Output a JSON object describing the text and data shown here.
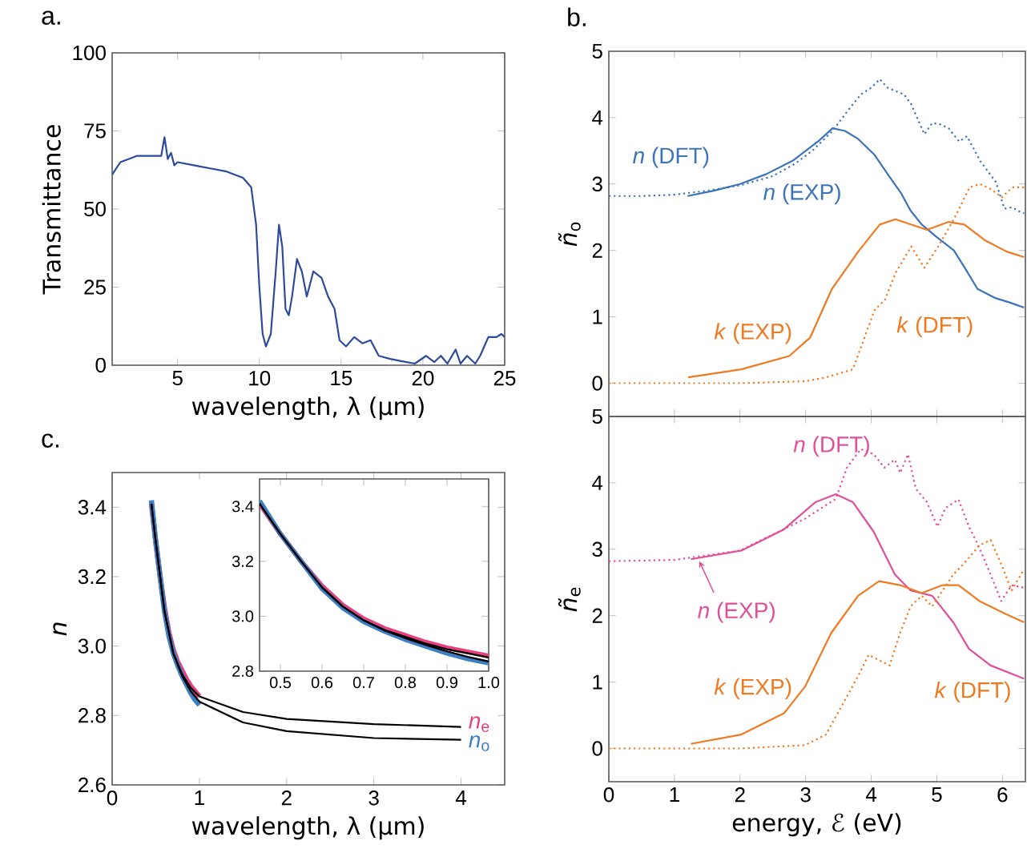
{
  "chart_data": [
    {
      "type": "line",
      "xlabel": "wavelength, λ (μm)",
      "ylabel": "Transmittance",
      "xlim": [
        1,
        25
      ],
      "ylim": [
        0,
        100
      ],
      "xticks": [
        5,
        10,
        15,
        20,
        25
      ],
      "yticks": [
        0,
        25,
        50,
        75,
        100
      ],
      "annotations": [
        "a."
      ],
      "series": [
        {
          "color": "#2e4a9a",
          "line_style": "solid",
          "x": [
            1,
            1.5,
            2,
            2.5,
            3,
            4,
            4.2,
            4.4,
            4.6,
            4.8,
            5,
            6,
            7,
            8,
            9,
            9.5,
            9.8,
            10,
            10.2,
            10.4,
            10.7,
            11,
            11.2,
            11.4,
            11.6,
            11.8,
            12,
            12.3,
            12.6,
            12.9,
            13.3,
            13.8,
            14.2,
            14.6,
            14.9,
            15.3,
            15.8,
            16.3,
            16.8,
            17.3,
            18,
            19,
            19.5,
            20.2,
            20.7,
            21.1,
            21.5,
            22,
            22.3,
            22.7,
            23.2,
            23.5,
            24,
            24.5,
            24.8,
            25
          ],
          "values": [
            61,
            65,
            66,
            67,
            67,
            67,
            73,
            66,
            68,
            64,
            65,
            64,
            63,
            62,
            60,
            57,
            45,
            25,
            10,
            6,
            10,
            30,
            45,
            38,
            18,
            16,
            22,
            34,
            30,
            22,
            30,
            28,
            22,
            18,
            8,
            6,
            9,
            7,
            8,
            3,
            2,
            1,
            0.5,
            3,
            1,
            3,
            0.5,
            5,
            0.5,
            3,
            0.5,
            3,
            9,
            9,
            10,
            9
          ]
        }
      ]
    },
    {
      "type": "line",
      "ylabel": "*ñ*$_{o}$",
      "xlim": [
        0,
        6.35
      ],
      "ylim": [
        -0.5,
        5
      ],
      "xticks": [
        0,
        1,
        2,
        3,
        4,
        5,
        6
      ],
      "yticks": [
        0,
        1,
        2,
        3,
        4,
        5
      ],
      "tick_labels": "y",
      "annotations": [
        "b."
      ],
      "series": [
        {
          "name": "*n* (DFT)",
          "color": "#3d73b8",
          "line_style": "dotted",
          "x": [
            0,
            0.5,
            1,
            1.5,
            2,
            2.5,
            2.83,
            3.1,
            3.41,
            3.6,
            3.84,
            4.0,
            4.13,
            4.25,
            4.37,
            4.5,
            4.61,
            4.81,
            4.93,
            5.05,
            5.18,
            5.34,
            5.46,
            5.66,
            5.9,
            6.03,
            6.15,
            6.23,
            6.33
          ],
          "values": [
            2.82,
            2.82,
            2.84,
            2.9,
            2.98,
            3.12,
            3.3,
            3.5,
            3.8,
            4.05,
            4.35,
            4.45,
            4.58,
            4.45,
            4.4,
            4.35,
            4.2,
            3.75,
            3.92,
            3.9,
            3.84,
            3.64,
            3.72,
            3.35,
            3.03,
            2.63,
            2.65,
            2.6,
            2.56
          ]
        },
        {
          "name": "*n* (EXP)",
          "color": "#3d73b8",
          "line_style": "solid",
          "x": [
            1.2,
            1.6,
            2,
            2.4,
            2.8,
            3.0,
            3.2,
            3.41,
            3.6,
            3.8,
            4.05,
            4.25,
            4.45,
            4.6,
            4.77,
            5.0,
            5.26,
            5.45,
            5.62,
            5.9,
            6.1,
            6.33
          ],
          "values": [
            2.82,
            2.9,
            3.0,
            3.15,
            3.35,
            3.5,
            3.65,
            3.84,
            3.8,
            3.68,
            3.44,
            3.15,
            2.87,
            2.6,
            2.39,
            2.2,
            2.0,
            1.7,
            1.42,
            1.28,
            1.22,
            1.14
          ]
        },
        {
          "name": "*k* (EXP)",
          "color": "#f07a22",
          "line_style": "solid",
          "x": [
            1.21,
            2.02,
            2.75,
            3.07,
            3.4,
            3.8,
            4.13,
            4.37,
            4.61,
            4.85,
            5.18,
            5.42,
            5.74,
            6.07,
            6.33
          ],
          "values": [
            0.09,
            0.21,
            0.41,
            0.69,
            1.42,
            1.98,
            2.39,
            2.47,
            2.39,
            2.31,
            2.43,
            2.39,
            2.15,
            1.98,
            1.9
          ]
        },
        {
          "name": "*k* (DFT)",
          "color": "#f07a22",
          "line_style": "dotted",
          "x": [
            0,
            1,
            2,
            3,
            3.32,
            3.72,
            4.05,
            4.21,
            4.37,
            4.61,
            4.81,
            5.02,
            5.26,
            5.5,
            5.66,
            5.83,
            5.99,
            6.15,
            6.33
          ],
          "values": [
            0,
            0,
            0,
            0.03,
            0.09,
            0.21,
            1.1,
            1.26,
            1.66,
            2.06,
            1.74,
            2.06,
            2.47,
            2.95,
            3.0,
            2.92,
            2.8,
            2.95,
            2.95
          ]
        }
      ]
    },
    {
      "type": "line",
      "xlabel": "energy, ℰ (eV)",
      "ylabel": "*ñ*$_{e}$",
      "xlim": [
        0,
        6.35
      ],
      "ylim": [
        -0.5,
        5
      ],
      "xticks": [
        0,
        1,
        2,
        3,
        4,
        5,
        6
      ],
      "yticks": [
        0,
        1,
        2,
        3,
        4,
        5
      ],
      "series": [
        {
          "name": "*n* (DFT)",
          "color": "#e0509a",
          "line_style": "dotted",
          "x": [
            0,
            1,
            2,
            2.99,
            3.46,
            3.63,
            3.84,
            4.04,
            4.2,
            4.36,
            4.44,
            4.56,
            4.68,
            4.85,
            5.01,
            5.13,
            5.33,
            5.49,
            5.65,
            5.82,
            5.98,
            6.14,
            6.33
          ],
          "values": [
            2.82,
            2.84,
            2.98,
            3.46,
            3.76,
            4.23,
            4.51,
            4.43,
            4.23,
            4.35,
            4.15,
            4.43,
            3.91,
            3.71,
            3.34,
            3.62,
            3.75,
            3.34,
            3.02,
            2.62,
            2.22,
            2.46,
            2.42
          ]
        },
        {
          "name": "*n* (EXP)",
          "color": "#e0509a",
          "line_style": "solid",
          "x": [
            1.25,
            2.02,
            2.67,
            3.15,
            3.46,
            3.72,
            4.04,
            4.36,
            4.6,
            4.93,
            5.25,
            5.49,
            5.82,
            6.33
          ],
          "values": [
            2.85,
            2.98,
            3.3,
            3.71,
            3.83,
            3.71,
            3.26,
            2.62,
            2.38,
            2.3,
            1.9,
            1.5,
            1.25,
            1.05
          ]
        },
        {
          "name": "*k* (EXP)",
          "color": "#f07a22",
          "line_style": "solid",
          "x": [
            1.25,
            2.02,
            2.67,
            2.99,
            3.39,
            3.8,
            4.12,
            4.44,
            4.77,
            5.09,
            5.33,
            5.65,
            6.06,
            6.33
          ],
          "values": [
            0.07,
            0.21,
            0.53,
            0.93,
            1.74,
            2.3,
            2.52,
            2.46,
            2.34,
            2.46,
            2.46,
            2.22,
            2.02,
            1.9
          ]
        },
        {
          "name": "*k* (DFT)",
          "color": "#f07a22",
          "line_style": "dotted",
          "x": [
            0,
            1,
            2,
            2.99,
            3.31,
            3.8,
            3.96,
            4.28,
            4.44,
            4.6,
            4.77,
            4.93,
            5.25,
            5.41,
            5.65,
            5.82,
            5.98,
            6.14,
            6.33
          ],
          "values": [
            0,
            0,
            0,
            0.05,
            0.21,
            1.09,
            1.41,
            1.25,
            1.74,
            2.14,
            2.3,
            2.14,
            2.62,
            2.78,
            3.06,
            3.14,
            2.78,
            2.38,
            2.7
          ]
        }
      ]
    },
    {
      "type": "line",
      "xlabel": "wavelength, λ (μm)",
      "ylabel": "*n*",
      "xlim": [
        0,
        4.5
      ],
      "ylim": [
        2.6,
        3.5
      ],
      "xticks": [
        0,
        1,
        2,
        3,
        4
      ],
      "yticks": [
        2.6,
        2.8,
        {
          "value": 3,
          "label": "3.0"
        },
        3.2,
        3.4
      ],
      "annotations": [
        "c."
      ],
      "series": [
        {
          "name": "*n*$_{e}$",
          "color": "#e8407f",
          "line_style": "solid",
          "x": [
            0.45,
            0.5,
            0.55,
            0.6,
            0.65,
            0.7,
            0.75,
            0.8,
            0.85,
            0.9,
            0.95,
            1.0
          ],
          "values": [
            3.41,
            3.3,
            3.2,
            3.11,
            3.04,
            2.99,
            2.955,
            2.93,
            2.905,
            2.885,
            2.87,
            2.855
          ]
        },
        {
          "name": "*n*$_{o}$",
          "color": "#3e7fc4",
          "line_style": "solid",
          "x": [
            0.45,
            0.5,
            0.55,
            0.6,
            0.65,
            0.7,
            0.75,
            0.8,
            0.85,
            0.9,
            0.95,
            1.0
          ],
          "values": [
            3.42,
            3.3,
            3.2,
            3.1,
            3.03,
            2.98,
            2.945,
            2.915,
            2.89,
            2.865,
            2.845,
            2.83
          ]
        },
        {
          "color": "#000000",
          "line_style": "solid",
          "x": [
            0.45,
            0.5,
            0.6,
            0.7,
            0.8,
            0.9,
            1.0,
            1.5,
            2,
            3,
            4
          ],
          "values": [
            3.41,
            3.3,
            3.1,
            2.98,
            2.92,
            2.88,
            2.855,
            2.81,
            2.79,
            2.775,
            2.767
          ]
        },
        {
          "color": "#000000",
          "line_style": "solid",
          "x": [
            0.45,
            0.5,
            0.6,
            0.7,
            0.8,
            0.9,
            1.0,
            1.5,
            2,
            3,
            4
          ],
          "values": [
            3.41,
            3.3,
            3.1,
            2.98,
            2.915,
            2.87,
            2.84,
            2.78,
            2.755,
            2.735,
            2.73
          ]
        }
      ]
    },
    {
      "type": "line",
      "xlim": [
        0.45,
        1.0
      ],
      "ylim": [
        2.8,
        3.5
      ],
      "xticks": [
        0.5,
        0.6,
        0.7,
        0.8,
        0.9,
        {
          "value": 1,
          "label": "1.0"
        }
      ],
      "yticks": [
        2.8,
        {
          "value": 3,
          "label": "3.0"
        },
        3.2,
        3.4
      ],
      "series": [
        {
          "color": "#e8407f",
          "line_style": "solid",
          "x": [
            0.45,
            0.5,
            0.55,
            0.6,
            0.65,
            0.7,
            0.75,
            0.8,
            0.85,
            0.9,
            0.95,
            1.0
          ],
          "values": [
            3.41,
            3.3,
            3.2,
            3.11,
            3.04,
            2.99,
            2.955,
            2.93,
            2.905,
            2.885,
            2.87,
            2.855
          ]
        },
        {
          "color": "#3e7fc4",
          "line_style": "solid",
          "x": [
            0.45,
            0.5,
            0.55,
            0.6,
            0.65,
            0.7,
            0.75,
            0.8,
            0.85,
            0.9,
            0.95,
            1.0
          ],
          "values": [
            3.42,
            3.3,
            3.2,
            3.1,
            3.03,
            2.98,
            2.945,
            2.915,
            2.89,
            2.865,
            2.845,
            2.83
          ]
        },
        {
          "color": "#000000",
          "line_style": "solid",
          "x": [
            0.45,
            0.5,
            0.55,
            0.6,
            0.65,
            0.7,
            0.75,
            0.8,
            0.85,
            0.9,
            0.95,
            1.0
          ],
          "values": [
            3.41,
            3.3,
            3.2,
            3.105,
            3.035,
            2.985,
            2.95,
            2.925,
            2.9,
            2.88,
            2.865,
            2.85
          ]
        },
        {
          "color": "#000000",
          "line_style": "solid",
          "x": [
            0.45,
            0.5,
            0.55,
            0.6,
            0.65,
            0.7,
            0.75,
            0.8,
            0.85,
            0.9,
            0.95,
            1.0
          ],
          "values": [
            3.41,
            3.3,
            3.2,
            3.105,
            3.035,
            2.985,
            2.948,
            2.92,
            2.895,
            2.872,
            2.852,
            2.835
          ]
        }
      ]
    }
  ]
}
